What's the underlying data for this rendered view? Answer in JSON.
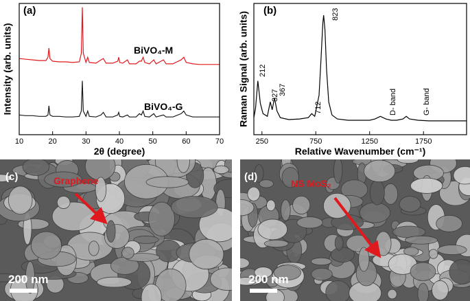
{
  "chart_data": [
    {
      "type": "line",
      "panel": "(a)",
      "x_label": "2θ (degree)",
      "y_label": "Intensity (arb. units)",
      "x": [
        10,
        12,
        14,
        16,
        18,
        18.6,
        18.9,
        19.2,
        20,
        22,
        24,
        26,
        28,
        28.6,
        28.9,
        29.2,
        30,
        30.5,
        31,
        33,
        34.5,
        35.2,
        36,
        38,
        39.5,
        39.8,
        40.1,
        41,
        42.4,
        43,
        45,
        46,
        46.6,
        47.1,
        47.6,
        49,
        50.3,
        51,
        53.2,
        54,
        56,
        58.5,
        59.3,
        60,
        62,
        64,
        66,
        68,
        70
      ],
      "series": [
        {
          "name": "BiVO₄-M",
          "color": "#e0191e",
          "values": [
            58,
            57.5,
            57,
            56.5,
            56.5,
            59,
            66,
            58,
            56,
            55.5,
            55.5,
            55,
            55.5,
            62,
            97,
            62,
            55,
            59,
            55,
            54.5,
            57,
            58,
            54.5,
            54.5,
            56,
            59,
            55,
            54.5,
            57,
            54,
            54,
            56,
            56,
            59,
            55,
            54,
            57,
            54,
            57,
            54,
            54,
            57,
            59,
            55,
            54,
            53.5,
            53.5,
            53.5,
            53.5
          ]
        },
        {
          "name": "BiVO₄-G",
          "color": "#1a1a1a",
          "values": [
            15,
            14.5,
            14.5,
            14,
            14,
            15,
            22,
            15,
            14,
            14,
            13.5,
            13.5,
            14,
            18,
            41,
            18,
            14,
            18,
            14,
            13.5,
            15,
            17,
            13.5,
            13.5,
            15,
            17,
            14,
            13.5,
            15,
            13.5,
            13.5,
            16,
            15,
            18,
            14,
            13.5,
            16,
            13.5,
            15,
            13.5,
            13.5,
            16,
            18,
            15,
            13.5,
            13.5,
            13.5,
            13.5,
            13.5
          ]
        }
      ],
      "xlim": [
        10,
        70
      ],
      "xticks": [
        10,
        20,
        30,
        40,
        50,
        60,
        70
      ],
      "ylim": [
        0,
        100
      ]
    },
    {
      "type": "line",
      "panel": "(b)",
      "x_label": "Relative Wavenumber (cm⁻¹)",
      "y_label": "Raman Signal (arb. units)",
      "x": [
        175,
        190,
        212,
        235,
        260,
        300,
        327,
        345,
        367,
        390,
        420,
        500,
        600,
        680,
        712,
        740,
        780,
        800,
        815,
        823,
        835,
        850,
        870,
        900,
        950,
        1050,
        1150,
        1250,
        1300,
        1350,
        1400,
        1450,
        1500,
        1560,
        1590,
        1620,
        1700,
        1800,
        1900,
        2000,
        2150
      ],
      "series": [
        {
          "color": "#000000",
          "values": [
            13,
            20,
            41,
            24,
            16,
            14,
            25,
            19,
            28,
            18,
            13,
            11.5,
            12,
            13,
            16,
            14,
            30,
            60,
            85,
            91,
            80,
            50,
            25,
            15,
            12,
            11,
            11,
            11,
            12,
            14,
            12,
            11,
            11,
            12,
            14,
            12,
            11,
            10.5,
            10.5,
            10.5,
            10.5
          ]
        }
      ],
      "annotations": [
        "212",
        "327",
        "367",
        "712",
        "823",
        "D- band",
        "G- band"
      ],
      "xlim": [
        175,
        2150
      ],
      "xticks": [
        250,
        750,
        1250,
        1750
      ],
      "ylim": [
        0,
        100
      ]
    }
  ],
  "images": [
    {
      "panel": "(c)",
      "annotation": "Graphene",
      "scale_bar": "200 nm"
    },
    {
      "panel": "(d)",
      "annotation": "NS MoS₂",
      "scale_bar": "200 nm"
    }
  ]
}
